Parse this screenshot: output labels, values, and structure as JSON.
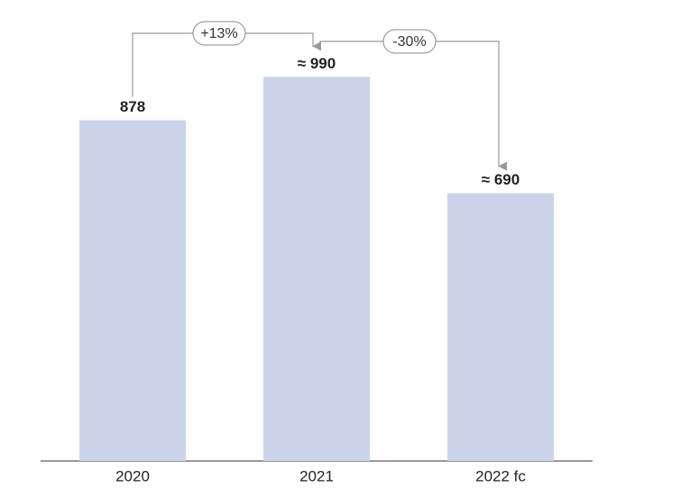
{
  "chart_data": {
    "type": "bar",
    "categories": [
      "2020",
      "2021",
      "2022 fc"
    ],
    "values": [
      878,
      990,
      690
    ],
    "value_labels": [
      "878",
      "≈ 990",
      "≈ 690"
    ],
    "color": "#cbd3ea",
    "annotations": [
      "+13%",
      "-30%"
    ]
  }
}
